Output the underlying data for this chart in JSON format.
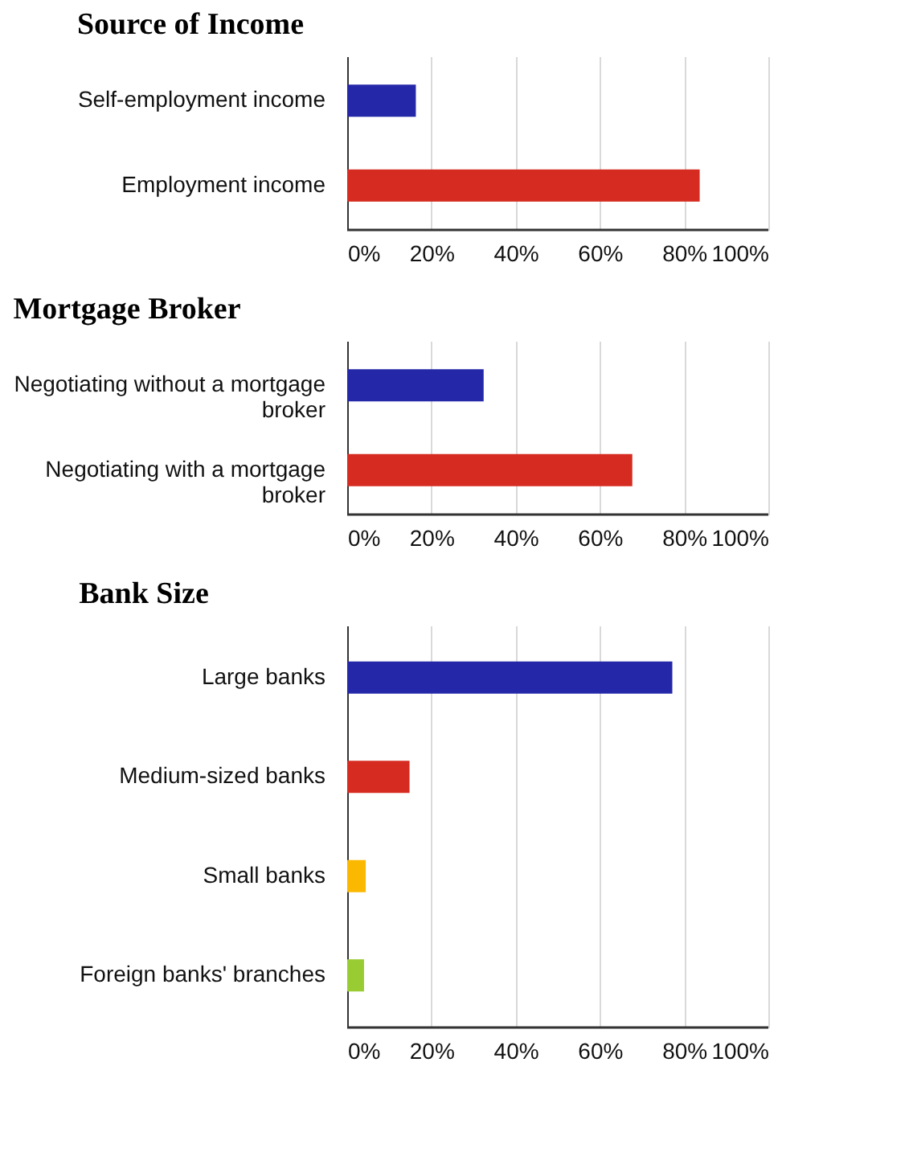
{
  "chart_data": [
    {
      "type": "bar",
      "orientation": "horizontal",
      "title": "Source of Income",
      "categories": [
        "Self-employment income",
        "Employment income"
      ],
      "values": [
        16.3,
        83.7
      ],
      "colors": [
        "#2427a8",
        "#d62b20"
      ],
      "xlim": [
        0,
        100
      ],
      "xticks": [
        {
          "value": 0,
          "label": "0%"
        },
        {
          "value": 20,
          "label": "20%"
        },
        {
          "value": 40,
          "label": "40%"
        },
        {
          "value": 60,
          "label": "60%"
        },
        {
          "value": 80,
          "label": "80%"
        },
        {
          "value": 100,
          "label": "100%"
        }
      ],
      "grid": "x"
    },
    {
      "type": "bar",
      "orientation": "horizontal",
      "title": "Mortgage Broker",
      "categories": [
        "Negotiating without a mortgage broker",
        "Negotiating with a mortgage broker"
      ],
      "values": [
        32.4,
        67.7
      ],
      "colors": [
        "#2427a8",
        "#d62b20"
      ],
      "xlim": [
        0,
        100
      ],
      "xticks": [
        {
          "value": 0,
          "label": "0%"
        },
        {
          "value": 20,
          "label": "20%"
        },
        {
          "value": 40,
          "label": "40%"
        },
        {
          "value": 60,
          "label": "60%"
        },
        {
          "value": 80,
          "label": "80%"
        },
        {
          "value": 100,
          "label": "100%"
        }
      ],
      "grid": "x"
    },
    {
      "type": "bar",
      "orientation": "horizontal",
      "title": "Bank Size",
      "categories": [
        "Large banks",
        "Medium-sized banks",
        "Small banks",
        "Foreign banks' branches"
      ],
      "values": [
        77.2,
        14.8,
        4.4,
        4.0
      ],
      "colors": [
        "#2427a8",
        "#d62b20",
        "#fbb800",
        "#99cc33"
      ],
      "xlim": [
        0,
        100
      ],
      "xticks": [
        {
          "value": 0,
          "label": "0%"
        },
        {
          "value": 20,
          "label": "20%"
        },
        {
          "value": 40,
          "label": "40%"
        },
        {
          "value": 60,
          "label": "60%"
        },
        {
          "value": 80,
          "label": "80%"
        },
        {
          "value": 100,
          "label": "100%"
        }
      ],
      "grid": "x"
    }
  ]
}
